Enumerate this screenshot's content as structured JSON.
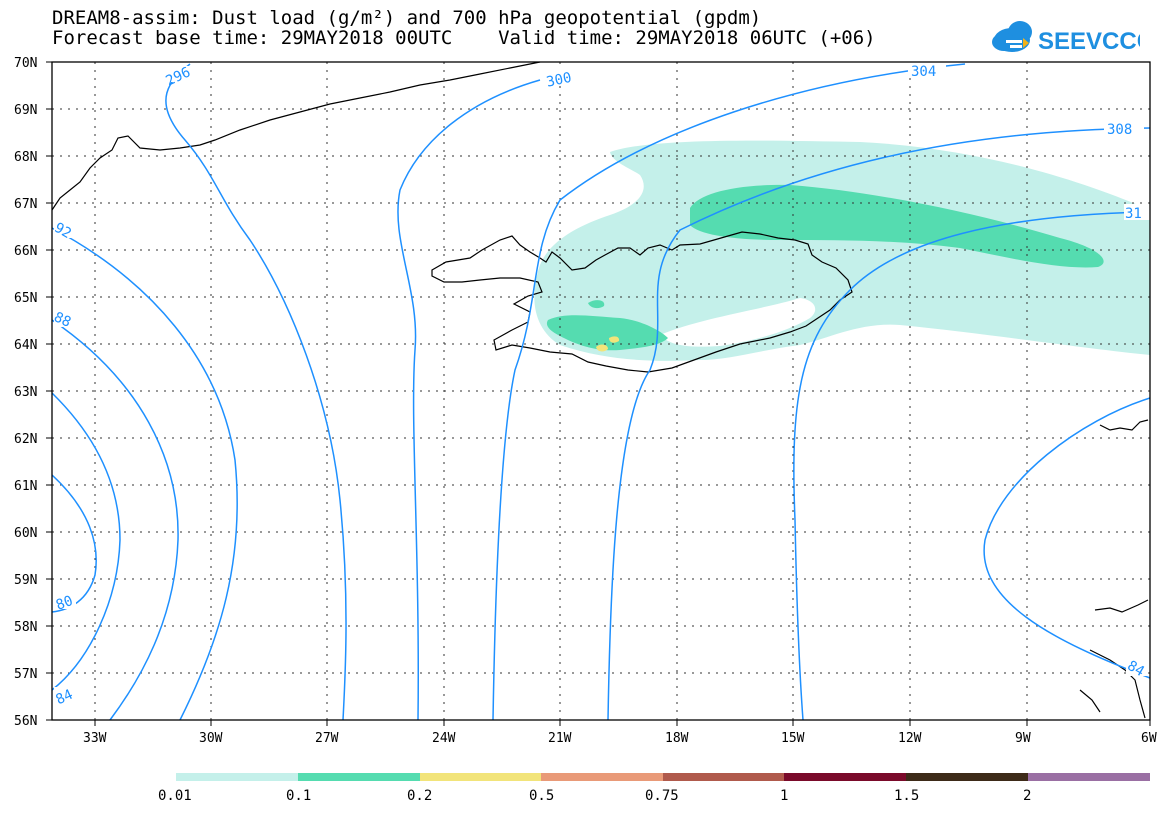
{
  "header": {
    "line1": "DREAM8-assim: Dust load (g/m²) and 700 hPa geopotential (gpdm)",
    "line2": "Forecast base time: 29MAY2018 00UTC    Valid time: 29MAY2018 06UTC (+06)"
  },
  "logo": {
    "text": "SEEVCCC",
    "color": "#1e8fe0"
  },
  "map": {
    "lat_labels": [
      "70N",
      "69N",
      "68N",
      "67N",
      "66N",
      "65N",
      "64N",
      "63N",
      "62N",
      "61N",
      "60N",
      "59N",
      "58N",
      "57N",
      "56N"
    ],
    "lon_labels": [
      "33W",
      "30W",
      "27W",
      "24W",
      "21W",
      "18W",
      "15W",
      "12W",
      "9W",
      "6W"
    ],
    "contour_color": "#1e90ff",
    "contour_labels": [
      "296",
      "300",
      "304",
      "308",
      "31",
      "92",
      "88",
      "80",
      "84",
      "84"
    ]
  },
  "colorbar": {
    "labels": [
      "0.01",
      "0.1",
      "0.2",
      "0.5",
      "0.75",
      "1",
      "1.5",
      "2"
    ],
    "colors": [
      "#c4f0ea",
      "#55dcb0",
      "#f2e47a",
      "#e99a78",
      "#b05a4c",
      "#7a0a2a",
      "#3d2a18",
      "#9a6fa3"
    ]
  }
}
